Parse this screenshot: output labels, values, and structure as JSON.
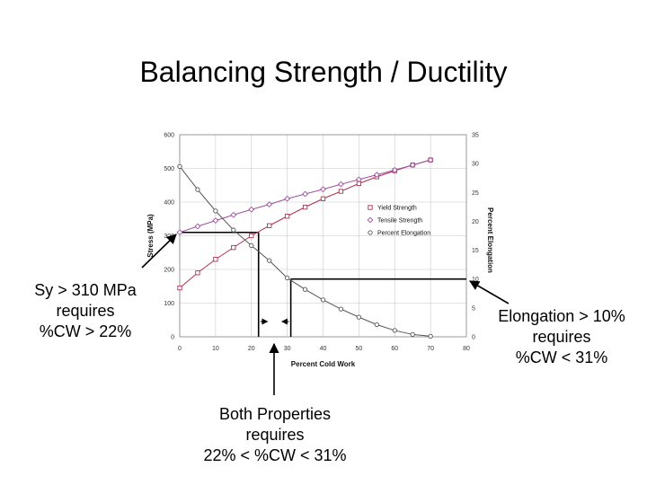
{
  "slide": {
    "title": "Balancing Strength / Ductility"
  },
  "annotations": {
    "left": [
      "Sy > 310 MPa",
      "requires",
      "%CW > 22%"
    ],
    "right": [
      "Elongation > 10%",
      "requires",
      "%CW < 31%"
    ],
    "bottom": [
      "Both Properties",
      "requires",
      "22% < %CW < 31%"
    ]
  },
  "colors": {
    "yield": "#b03050",
    "tensile": "#a050a0",
    "elongation": "#555555",
    "guide": "#000000",
    "grid": "#c8c8c8"
  },
  "chart_data": {
    "type": "line",
    "xlabel": "Percent Cold Work",
    "ylabel": "Stress (MPa)",
    "y2label": "Percent Elongation",
    "xlim": [
      0,
      80
    ],
    "ylim": [
      0,
      600
    ],
    "y2lim": [
      0,
      35
    ],
    "x_ticks": [
      "0",
      "10",
      "20",
      "30",
      "40",
      "50",
      "60",
      "70",
      "80"
    ],
    "y_ticks": [
      "0",
      "100",
      "200",
      "300",
      "400",
      "500",
      "600"
    ],
    "y2_ticks": [
      "0",
      "5",
      "10",
      "15",
      "20",
      "25",
      "30",
      "35"
    ],
    "grid": true,
    "legend_position": "right",
    "series": [
      {
        "name": "Yield Strength",
        "axis": "left",
        "marker": "square",
        "x": [
          0,
          5,
          10,
          15,
          20,
          25,
          30,
          35,
          40,
          45,
          50,
          55,
          60,
          65,
          70
        ],
        "values": [
          145,
          190,
          230,
          265,
          300,
          330,
          358,
          385,
          410,
          432,
          455,
          475,
          493,
          510,
          525
        ]
      },
      {
        "name": "Tensile Strength",
        "axis": "left",
        "marker": "diamond",
        "x": [
          0,
          5,
          10,
          15,
          20,
          25,
          30,
          35,
          40,
          45,
          50,
          55,
          60,
          65,
          70
        ],
        "values": [
          310,
          328,
          345,
          362,
          378,
          393,
          410,
          424,
          438,
          453,
          467,
          481,
          495,
          510,
          525
        ]
      },
      {
        "name": "Percent Elongation",
        "axis": "right",
        "marker": "circle",
        "x": [
          0,
          5,
          10,
          15,
          20,
          25,
          30,
          35,
          40,
          45,
          50,
          55,
          60,
          65,
          70
        ],
        "values": [
          29.5,
          25.5,
          21.8,
          18.5,
          15.8,
          13.2,
          10.2,
          8.2,
          6.4,
          4.8,
          3.4,
          2.1,
          1.1,
          0.4,
          0.1
        ]
      }
    ],
    "guides": {
      "yield_threshold_mpa": 310,
      "yield_cw_percent": 22,
      "elongation_threshold_percent": 10,
      "elongation_cw_percent": 31
    }
  }
}
